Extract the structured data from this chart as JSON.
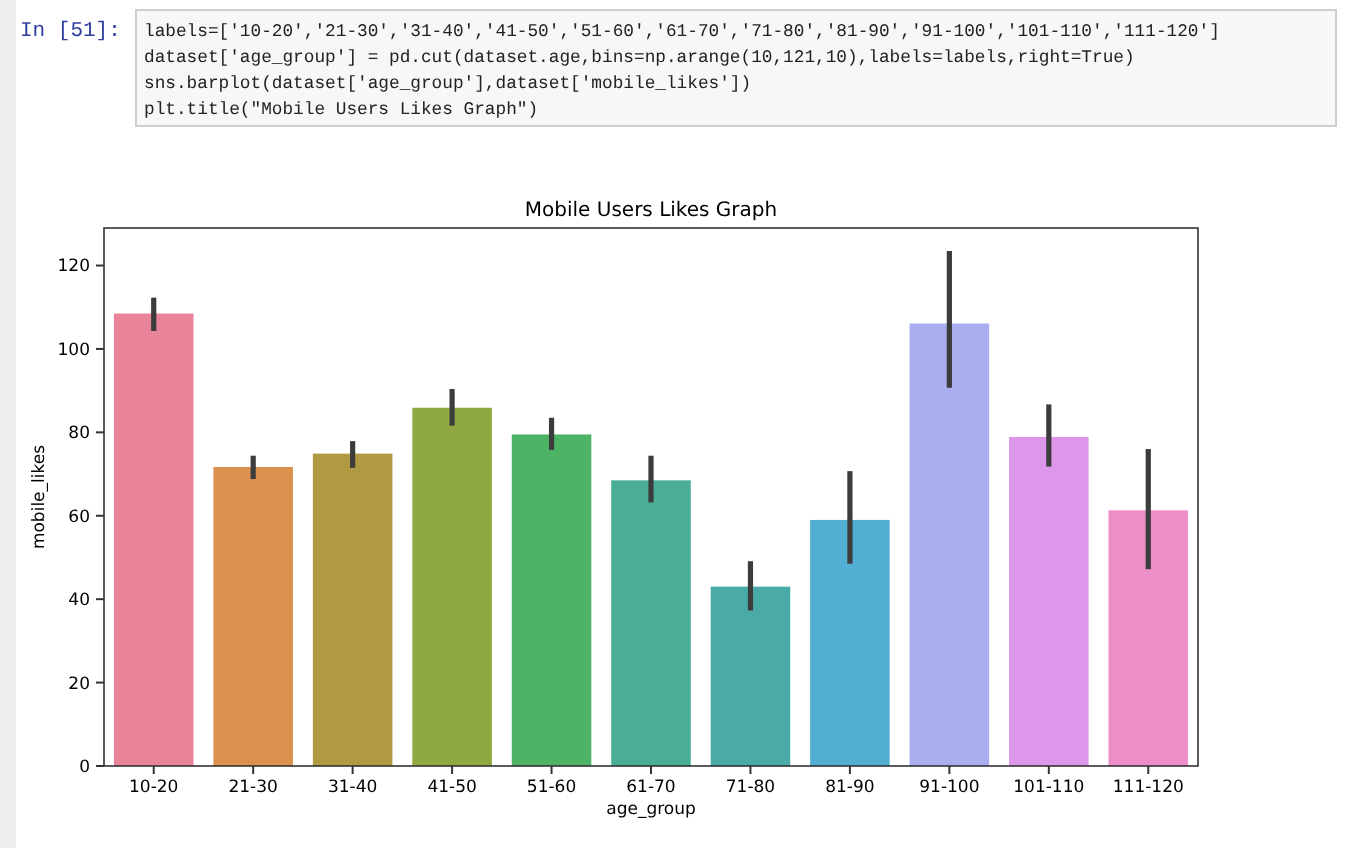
{
  "chart_data": {
    "type": "bar",
    "title": "Mobile Users Likes Graph",
    "xlabel": "age_group",
    "ylabel": "mobile_likes",
    "annotations": [
      "In [51]:",
      "labels=['10-20','21-30','31-40','41-50','51-60','61-70','71-80','81-90','91-100','101-110','111-120']",
      "dataset['age_group'] = pd.cut(dataset.age,bins=np.arange(10,121,10),labels=labels,right=True)",
      "sns.barplot(dataset['age_group'],dataset['mobile_likes'])",
      "plt.title(\"Mobile Users Likes Graph\")"
    ],
    "categories": [
      "10-20",
      "21-30",
      "31-40",
      "41-50",
      "51-60",
      "61-70",
      "71-80",
      "81-90",
      "91-100",
      "101-110",
      "111-120"
    ],
    "values": [
      108.5,
      71.7,
      74.9,
      85.9,
      79.5,
      68.5,
      43,
      59,
      106.1,
      78.9,
      61.3
    ],
    "errors": [
      [
        104.3,
        112.3
      ],
      [
        68.8,
        74.4
      ],
      [
        71.5,
        77.9
      ],
      [
        81.6,
        90.4
      ],
      [
        75.8,
        83.5
      ],
      [
        63.2,
        74.4
      ],
      [
        37.3,
        49.1
      ],
      [
        48.5,
        70.7
      ],
      [
        90.7,
        123.5
      ],
      [
        71.8,
        86.7
      ],
      [
        47.2,
        76
      ]
    ],
    "colors": [
      "#e8839a",
      "#dc914f",
      "#b09a42",
      "#90a840",
      "#4cb464",
      "#4aae96",
      "#4aaaa8",
      "#52aed2",
      "#a8aef0",
      "#dc96ea",
      "#ec8ec8"
    ],
    "ylim": [
      0,
      129
    ],
    "yticks": [
      0,
      20,
      40,
      60,
      80,
      100,
      120
    ],
    "grid": false
  }
}
